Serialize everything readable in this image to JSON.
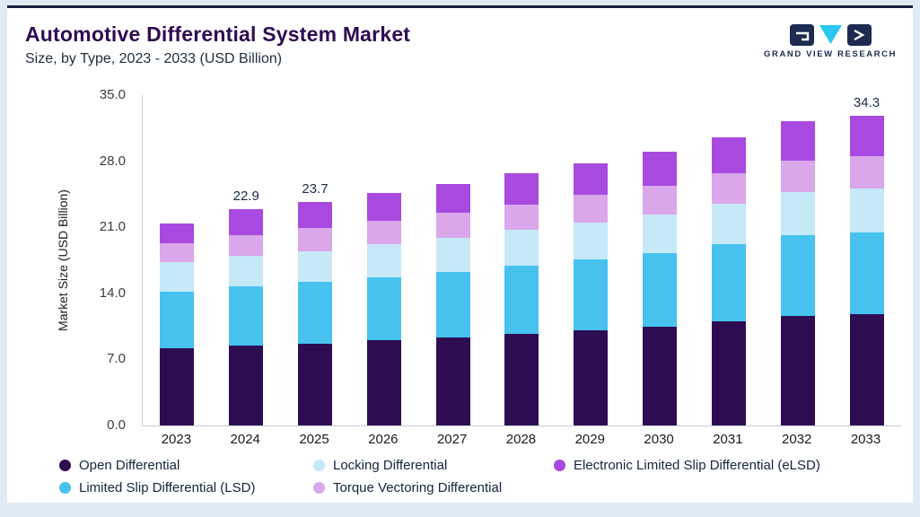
{
  "header": {
    "title": "Automotive Differential System Market",
    "subtitle": "Size, by Type, 2023 - 2033 (USD Billion)",
    "logo_text": "GRAND VIEW RESEARCH"
  },
  "chart_data": {
    "type": "bar",
    "stacked": true,
    "title": "Automotive Differential System Market",
    "subtitle": "Size, by Type, 2023 - 2033 (USD Billion)",
    "xlabel": "",
    "ylabel": "Market Size (USD Billion)",
    "ylim": [
      0,
      35
    ],
    "yticks": [
      0,
      7,
      14,
      21,
      28,
      35
    ],
    "ytick_labels": [
      "0.0",
      "7.0",
      "14.0",
      "21.0",
      "28.0",
      "35.0"
    ],
    "grid": false,
    "legend_position": "bottom",
    "categories": [
      "2023",
      "2024",
      "2025",
      "2026",
      "2027",
      "2028",
      "2029",
      "2030",
      "2031",
      "2032",
      "2033"
    ],
    "series": [
      {
        "name": "Open Differential",
        "color": "#2e0c52",
        "values": [
          8.2,
          8.5,
          8.7,
          9.0,
          9.3,
          9.7,
          10.1,
          10.5,
          11.0,
          11.6,
          12.3
        ]
      },
      {
        "name": "Limited Slip Differential (LSD)",
        "color": "#47c2ef",
        "values": [
          6.0,
          6.2,
          6.5,
          6.7,
          7.0,
          7.2,
          7.5,
          7.8,
          8.2,
          8.6,
          9.1
        ]
      },
      {
        "name": "Locking Differential",
        "color": "#c6e9f8",
        "values": [
          3.1,
          3.3,
          3.3,
          3.5,
          3.6,
          3.8,
          3.9,
          4.1,
          4.3,
          4.5,
          4.8
        ]
      },
      {
        "name": "Torque Vectoring Differential",
        "color": "#d9a7ea",
        "values": [
          2.0,
          2.2,
          2.4,
          2.5,
          2.6,
          2.7,
          2.9,
          3.0,
          3.2,
          3.4,
          3.6
        ]
      },
      {
        "name": "Electronic Limited Slip Differential (eLSD)",
        "color": "#a84ae0",
        "values": [
          2.1,
          2.7,
          2.8,
          2.9,
          3.1,
          3.3,
          3.4,
          3.6,
          3.8,
          4.1,
          4.5
        ]
      }
    ],
    "bar_labels": [
      "",
      "22.9",
      "23.7",
      "",
      "",
      "",
      "",
      "",
      "",
      "",
      "34.3"
    ]
  },
  "legend": {
    "items": [
      {
        "label": "Open Differential",
        "color": "#2e0c52"
      },
      {
        "label": "Locking Differential",
        "color": "#c6e9f8"
      },
      {
        "label": "Electronic Limited Slip Differential (eLSD)",
        "color": "#a84ae0"
      },
      {
        "label": "Limited Slip Differential (LSD)",
        "color": "#47c2ef"
      },
      {
        "label": "Torque Vectoring Differential",
        "color": "#d9a7ea"
      }
    ]
  },
  "colors": {
    "accent_navy": "#13203f",
    "title_purple": "#2e0c52",
    "logo_cyan": "#2bc7f4",
    "page_background": "#dfeaf3",
    "axis_line": "#c4cfd8"
  }
}
